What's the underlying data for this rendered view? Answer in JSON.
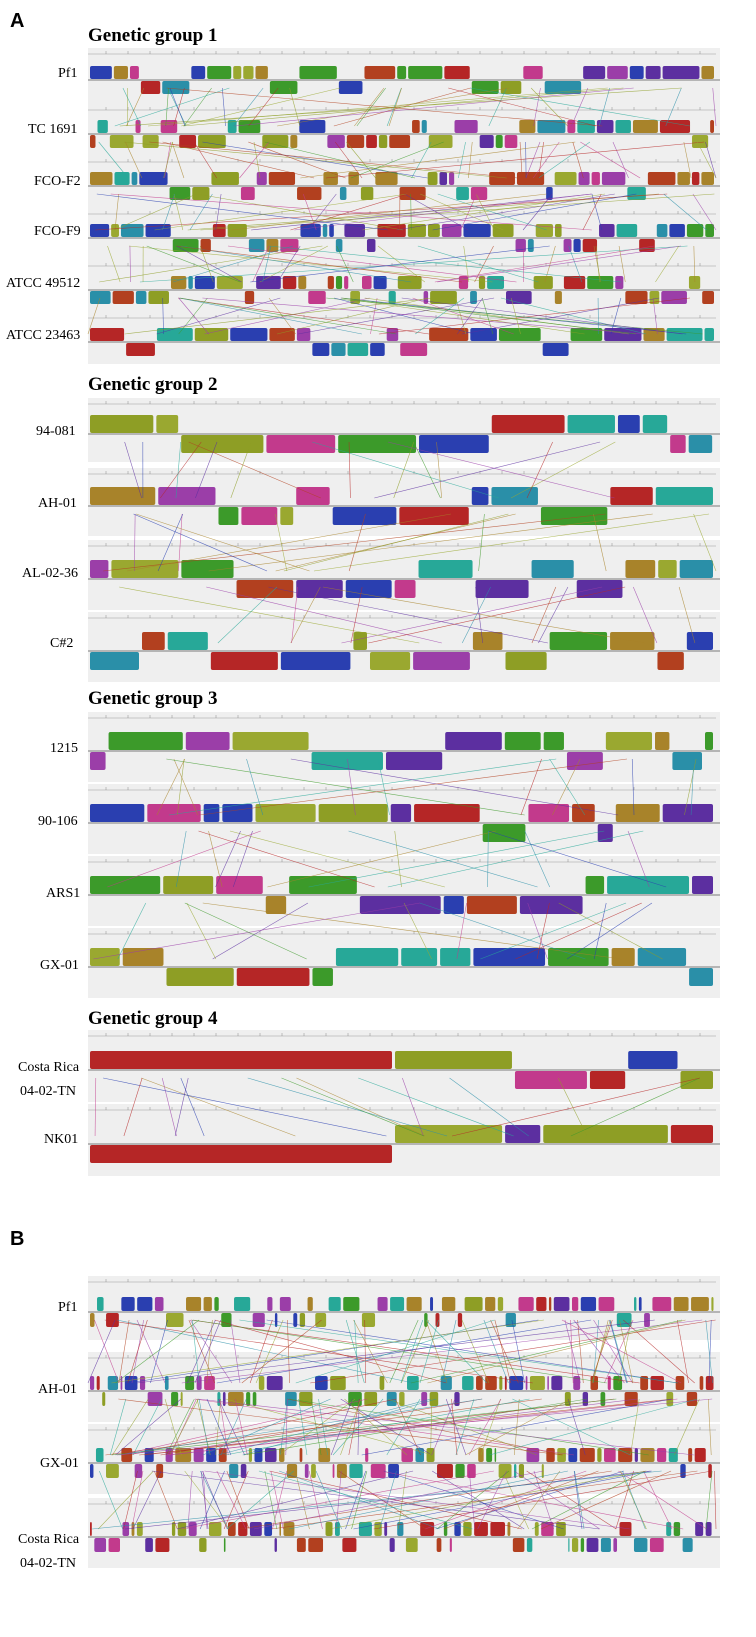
{
  "panels": [
    {
      "label": "A"
    },
    {
      "label": "B"
    }
  ],
  "groups": [
    {
      "title": "Genetic group 1",
      "genomes": [
        "Pf1",
        "TC 1691",
        "FCO-F2",
        "FCO-F9",
        "ATCC 49512",
        "ATCC 23463"
      ]
    },
    {
      "title": "Genetic group 2",
      "genomes": [
        "94-081",
        "AH-01",
        "AL-02-36",
        "C#2"
      ]
    },
    {
      "title": "Genetic group 3",
      "genomes": [
        "1215",
        "90-106",
        "ARS1",
        "GX-01"
      ]
    },
    {
      "title": "Genetic group 4",
      "genomes": [
        "Costa Rica 04-02-TN",
        "NK01"
      ]
    }
  ],
  "panelB_genomes": [
    "Pf1",
    "AH-01",
    "GX-01",
    "Costa Rica 04-02-TN"
  ],
  "labels": {
    "pf1": "Pf1",
    "tc1691": "TC 1691",
    "fcof2": "FCO-F2",
    "fcof9": "FCO-F9",
    "atcc49512": "ATCC 49512",
    "atcc23463": "ATCC 23463",
    "g94081": "94-081",
    "ah01": "AH-01",
    "al0236": "AL-02-36",
    "c2": "C#2",
    "g1215": "1215",
    "g90106": "90-106",
    "ars1": "ARS1",
    "gx01": "GX-01",
    "costa_rica_line1": "Costa Rica",
    "costa_rica_line2": "04-02-TN",
    "nk01": "NK01",
    "b_pf1": "Pf1",
    "b_ah01": "AH-01",
    "b_gx01": "GX-01",
    "b_costa_line1": "Costa Rica",
    "b_costa_line2": "04-02-TN"
  },
  "colors": [
    "#8e9e25",
    "#2a3fb0",
    "#3c9a2a",
    "#9b3ea8",
    "#b2401f",
    "#2a8fa8",
    "#a8832a",
    "#c23a8c",
    "#27a898",
    "#b52626",
    "#5c2fa0",
    "#9aa830"
  ]
}
